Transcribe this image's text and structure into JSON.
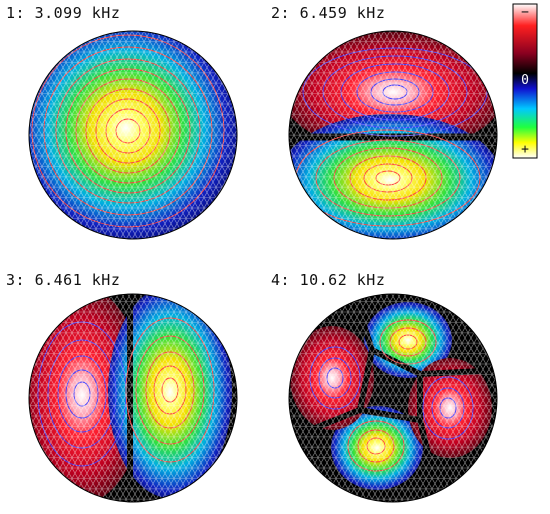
{
  "panels": [
    {
      "label": "1: 3.099 kHz",
      "mode": "fundamental"
    },
    {
      "label": "2: 6.459 kHz",
      "mode": "horizontal-nodal-line"
    },
    {
      "label": "3: 6.461 kHz",
      "mode": "vertical-nodal-line"
    },
    {
      "label": "4: 10.62 kHz",
      "mode": "four-lobe"
    }
  ],
  "colorbar": {
    "minus_label": "−",
    "zero_label": "0",
    "plus_label": "+",
    "colors": [
      "#ffffff",
      "#ff2020",
      "#8a0020",
      "#000000",
      "#1010d0",
      "#00c8ff",
      "#20ff40",
      "#ffff00",
      "#ffffff"
    ]
  }
}
